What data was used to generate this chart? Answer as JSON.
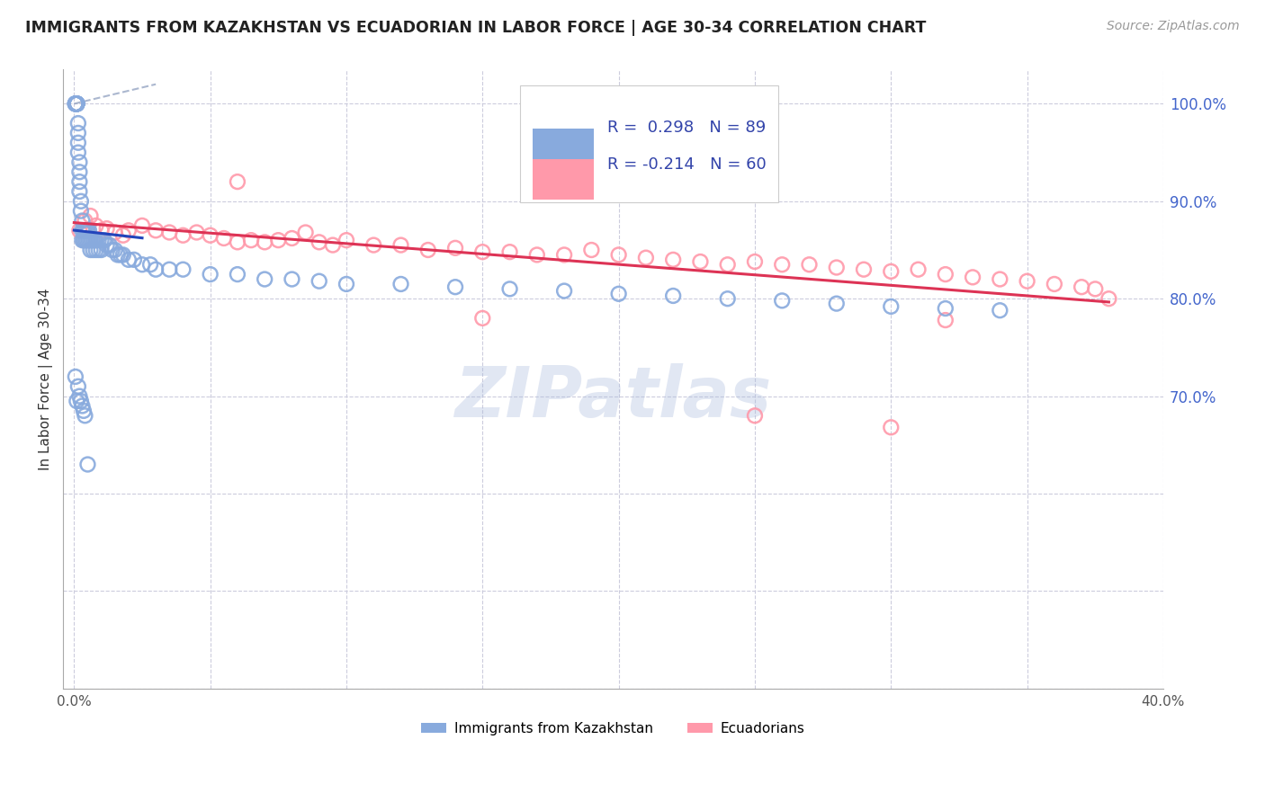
{
  "title": "IMMIGRANTS FROM KAZAKHSTAN VS ECUADORIAN IN LABOR FORCE | AGE 30-34 CORRELATION CHART",
  "source": "Source: ZipAtlas.com",
  "ylabel": "In Labor Force | Age 30-34",
  "legend_r_blue": "0.298",
  "legend_n_blue": "89",
  "legend_r_pink": "-0.214",
  "legend_n_pink": "60",
  "legend_label_blue": "Immigrants from Kazakhstan",
  "legend_label_pink": "Ecuadorians",
  "blue_color": "#88AADD",
  "pink_color": "#FF99AA",
  "trend_blue_color": "#2244BB",
  "trend_pink_color": "#DD3355",
  "watermark": "ZIPatlas",
  "watermark_color": "#AABBDD",
  "blue_scatter_x": [
    0.0005,
    0.0005,
    0.0005,
    0.0005,
    0.0005,
    0.001,
    0.001,
    0.001,
    0.001,
    0.001,
    0.001,
    0.001,
    0.0015,
    0.0015,
    0.0015,
    0.0015,
    0.002,
    0.002,
    0.002,
    0.002,
    0.0025,
    0.0025,
    0.003,
    0.003,
    0.003,
    0.0035,
    0.0035,
    0.004,
    0.004,
    0.0045,
    0.0045,
    0.005,
    0.005,
    0.0055,
    0.0055,
    0.006,
    0.006,
    0.0065,
    0.007,
    0.007,
    0.0075,
    0.008,
    0.008,
    0.009,
    0.009,
    0.01,
    0.01,
    0.011,
    0.012,
    0.013,
    0.014,
    0.015,
    0.016,
    0.017,
    0.018,
    0.02,
    0.022,
    0.025,
    0.028,
    0.03,
    0.035,
    0.04,
    0.05,
    0.06,
    0.07,
    0.08,
    0.09,
    0.1,
    0.12,
    0.14,
    0.16,
    0.18,
    0.2,
    0.22,
    0.24,
    0.26,
    0.28,
    0.3,
    0.32,
    0.34,
    0.0005,
    0.001,
    0.0015,
    0.002,
    0.0025,
    0.003,
    0.0035,
    0.004,
    0.005
  ],
  "blue_scatter_y": [
    1.0,
    1.0,
    1.0,
    1.0,
    1.0,
    1.0,
    1.0,
    1.0,
    1.0,
    1.0,
    1.0,
    1.0,
    0.98,
    0.97,
    0.96,
    0.95,
    0.94,
    0.93,
    0.92,
    0.91,
    0.9,
    0.89,
    0.88,
    0.87,
    0.86,
    0.87,
    0.86,
    0.87,
    0.86,
    0.87,
    0.86,
    0.87,
    0.86,
    0.87,
    0.86,
    0.86,
    0.85,
    0.86,
    0.86,
    0.85,
    0.86,
    0.86,
    0.85,
    0.86,
    0.85,
    0.86,
    0.85,
    0.86,
    0.855,
    0.855,
    0.85,
    0.85,
    0.845,
    0.845,
    0.845,
    0.84,
    0.84,
    0.835,
    0.835,
    0.83,
    0.83,
    0.83,
    0.825,
    0.825,
    0.82,
    0.82,
    0.818,
    0.815,
    0.815,
    0.812,
    0.81,
    0.808,
    0.805,
    0.803,
    0.8,
    0.798,
    0.795,
    0.792,
    0.79,
    0.788,
    0.72,
    0.695,
    0.71,
    0.7,
    0.695,
    0.69,
    0.685,
    0.68,
    0.63
  ],
  "pink_scatter_x": [
    0.002,
    0.004,
    0.006,
    0.008,
    0.01,
    0.012,
    0.015,
    0.018,
    0.02,
    0.025,
    0.03,
    0.035,
    0.04,
    0.045,
    0.05,
    0.055,
    0.06,
    0.065,
    0.07,
    0.075,
    0.08,
    0.085,
    0.09,
    0.095,
    0.1,
    0.11,
    0.12,
    0.13,
    0.14,
    0.15,
    0.16,
    0.17,
    0.18,
    0.19,
    0.2,
    0.21,
    0.22,
    0.23,
    0.24,
    0.25,
    0.26,
    0.27,
    0.28,
    0.29,
    0.3,
    0.31,
    0.32,
    0.33,
    0.34,
    0.35,
    0.36,
    0.37,
    0.375,
    0.38,
    0.18,
    0.25,
    0.3,
    0.32,
    0.06,
    0.15
  ],
  "pink_scatter_y": [
    0.87,
    0.88,
    0.885,
    0.875,
    0.87,
    0.872,
    0.868,
    0.865,
    0.87,
    0.875,
    0.87,
    0.868,
    0.865,
    0.868,
    0.865,
    0.862,
    0.858,
    0.86,
    0.858,
    0.86,
    0.862,
    0.868,
    0.858,
    0.855,
    0.86,
    0.855,
    0.855,
    0.85,
    0.852,
    0.848,
    0.848,
    0.845,
    0.845,
    0.85,
    0.845,
    0.842,
    0.84,
    0.838,
    0.835,
    0.838,
    0.835,
    0.835,
    0.832,
    0.83,
    0.828,
    0.83,
    0.825,
    0.822,
    0.82,
    0.818,
    0.815,
    0.812,
    0.81,
    0.8,
    0.935,
    0.68,
    0.668,
    0.778,
    0.92,
    0.78
  ]
}
